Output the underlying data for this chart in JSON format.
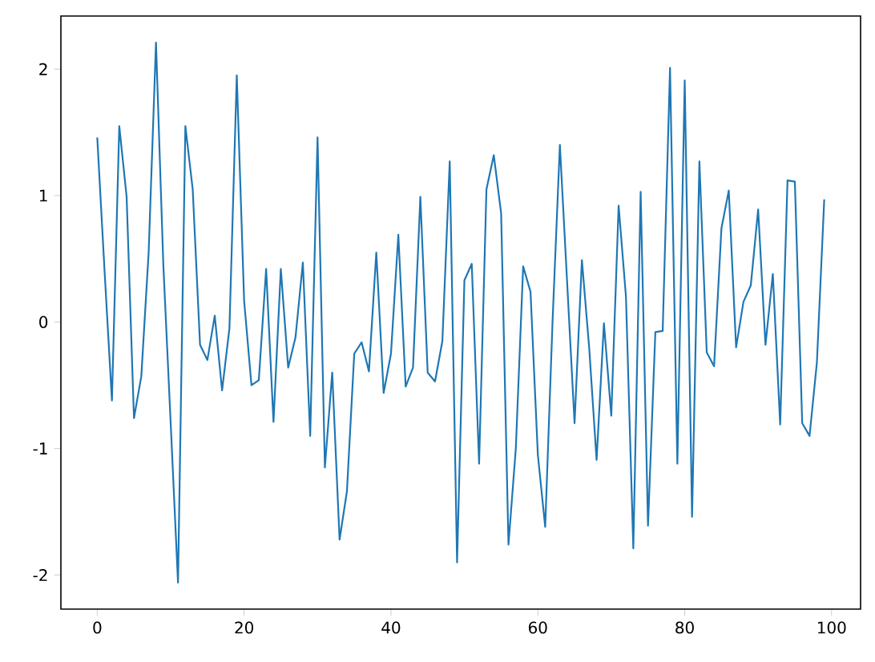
{
  "chart_data": {
    "type": "line",
    "x": [
      0,
      1,
      2,
      3,
      4,
      5,
      6,
      7,
      8,
      9,
      10,
      11,
      12,
      13,
      14,
      15,
      16,
      17,
      18,
      19,
      20,
      21,
      22,
      23,
      24,
      25,
      26,
      27,
      28,
      29,
      30,
      31,
      32,
      33,
      34,
      35,
      36,
      37,
      38,
      39,
      40,
      41,
      42,
      43,
      44,
      45,
      46,
      47,
      48,
      49,
      50,
      51,
      52,
      53,
      54,
      55,
      56,
      57,
      58,
      59,
      60,
      61,
      62,
      63,
      64,
      65,
      66,
      67,
      68,
      69,
      70,
      71,
      72,
      73,
      74,
      75,
      76,
      77,
      78,
      79,
      80,
      81,
      82,
      83,
      84,
      85,
      86,
      87,
      88,
      89,
      90,
      91,
      92,
      93,
      94,
      95,
      96,
      97,
      98,
      99
    ],
    "series": [
      {
        "color": "#1f77b4",
        "values": [
          1.46,
          0.4,
          -0.62,
          1.55,
          0.99,
          -0.76,
          -0.43,
          0.55,
          2.21,
          0.45,
          -0.8,
          -2.06,
          1.55,
          1.05,
          -0.18,
          -0.3,
          0.05,
          -0.54,
          -0.05,
          1.95,
          0.17,
          -0.5,
          -0.46,
          0.42,
          -0.79,
          0.42,
          -0.36,
          -0.12,
          0.47,
          -0.9,
          1.46,
          -1.15,
          -0.4,
          -1.72,
          -1.34,
          -0.25,
          -0.16,
          -0.39,
          0.55,
          -0.56,
          -0.25,
          0.69,
          -0.51,
          -0.36,
          0.99,
          -0.4,
          -0.47,
          -0.15,
          1.27,
          -1.9,
          0.33,
          0.46,
          -1.12,
          1.05,
          1.32,
          0.86,
          -1.76,
          -1.0,
          0.44,
          0.24,
          -1.05,
          -1.62,
          0.0,
          1.4,
          0.3,
          -0.8,
          0.49,
          -0.21,
          -1.09,
          -0.01,
          -0.74,
          0.92,
          0.2,
          -1.79,
          1.03,
          -1.61,
          -0.08,
          -0.07,
          2.01,
          -1.12,
          1.91,
          -1.54,
          1.27,
          -0.24,
          -0.35,
          0.74,
          1.04,
          -0.2,
          0.16,
          0.29,
          0.89,
          -0.18,
          0.38,
          -0.81,
          1.12,
          1.11,
          -0.8,
          -0.9,
          -0.32,
          0.97
        ]
      }
    ],
    "xlim": [
      -4.95,
      103.95
    ],
    "ylim": [
      -2.27,
      2.42
    ],
    "xticks": [
      0,
      20,
      40,
      60,
      80,
      100
    ],
    "yticks": [
      -2,
      -1,
      0,
      1,
      2
    ],
    "line_style": "solid",
    "marker": "none"
  }
}
